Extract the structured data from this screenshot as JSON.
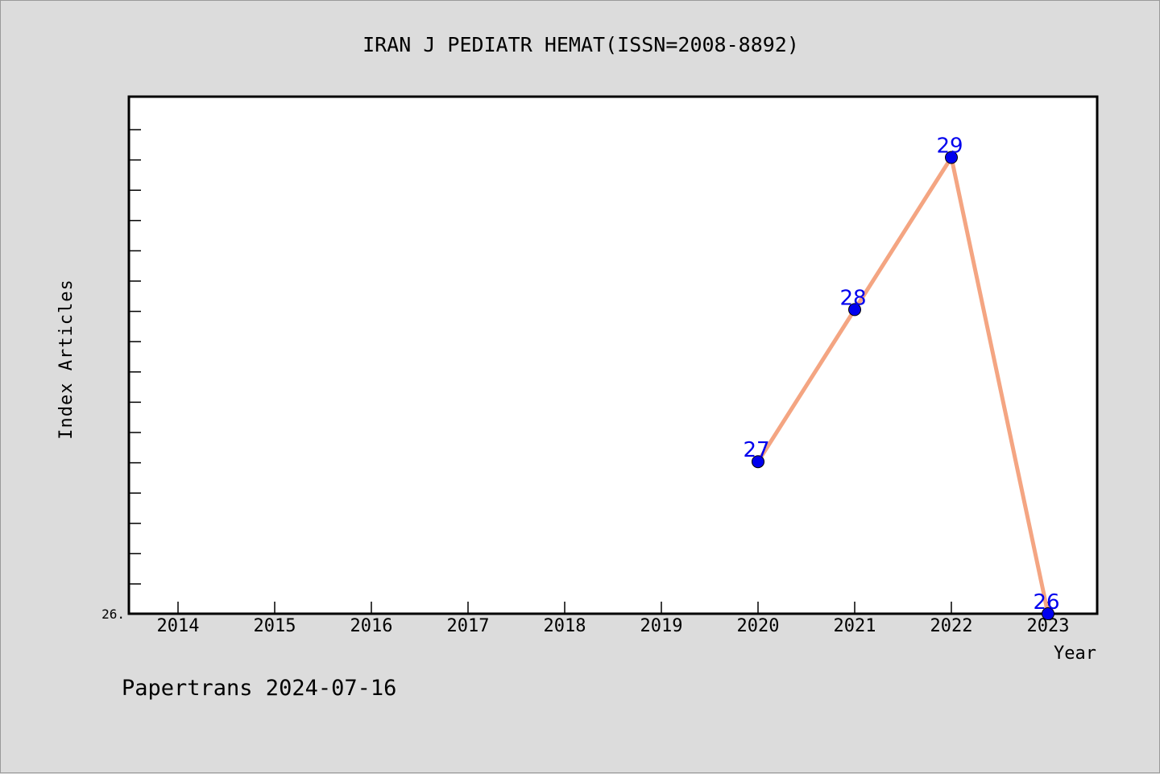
{
  "footer": {
    "credit": "Papertrans 2024-07-16"
  },
  "colors": {
    "background": "#dcdcdc",
    "plot_background": "#ffffff",
    "line": "#f4a582",
    "marker": "#0000ee",
    "data_label": "#0000ee"
  },
  "chart_data": {
    "type": "line",
    "title": "IRAN J PEDIATR HEMAT(ISSN=2008-8892)",
    "xlabel": "Year",
    "ylabel": "Index Articles",
    "categories": [
      "2014",
      "2015",
      "2016",
      "2017",
      "2018",
      "2019",
      "2020",
      "2021",
      "2022",
      "2023"
    ],
    "y_tick_label": "26.",
    "ylim": [
      26,
      29.4
    ],
    "grid": false,
    "legend": "none",
    "series": [
      {
        "points": [
          {
            "x": "2020",
            "y": 27,
            "label": "27"
          },
          {
            "x": "2021",
            "y": 28,
            "label": "28"
          },
          {
            "x": "2022",
            "y": 29,
            "label": "29"
          },
          {
            "x": "2023",
            "y": 26,
            "label": "26"
          }
        ]
      }
    ]
  }
}
